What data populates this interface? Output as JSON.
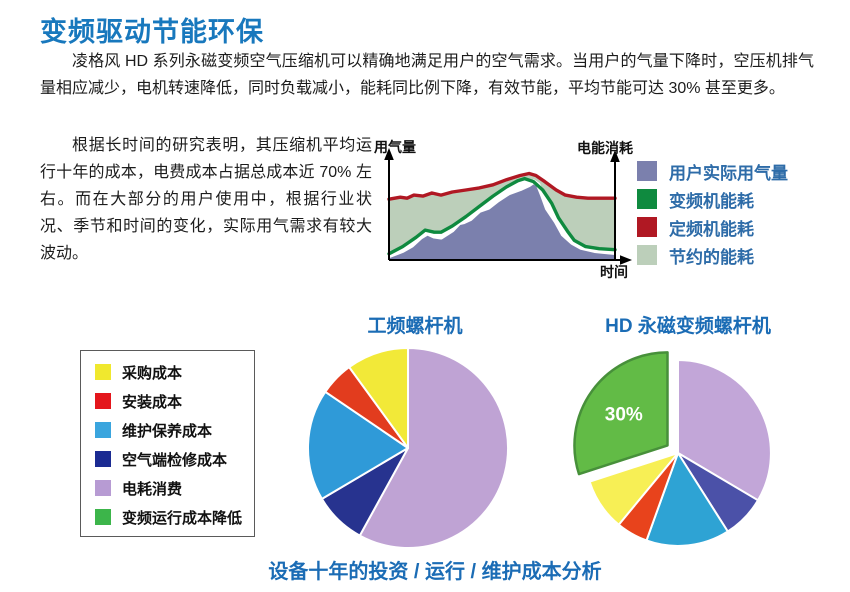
{
  "page": {
    "title": "变频驱动节能环保",
    "paragraph1": "凌格风 HD 系列永磁变频空气压缩机可以精确地满足用户的空气需求。当用户的气量下降时，空压机排气量相应减少，电机转速降低，同时负载减小，能耗同比例下降，有效节能，平均节能可达 30% 甚至更多。",
    "paragraph2": "根据长时间的研究表明，其压缩机平均运行十年的成本，电费成本占据总成本近 70% 左右。而在大部分的用户使用中，根据行业状况、季节和时间的变化，实际用气需求有较大波动。",
    "caption": "设备十年的投资 / 运行 / 维护成本分析"
  },
  "colors": {
    "heading_blue": "#1878bd",
    "chart_title_blue": "#1b6cb5",
    "legend_text_blue": "#2e6ca8",
    "body_text": "#1c1c1c"
  },
  "chart_data": [
    {
      "type": "area",
      "y_left_label": "用气量",
      "y_right_label": "电能消耗",
      "x_label": "时间",
      "x_range": [
        0,
        100
      ],
      "y_range": [
        0,
        100
      ],
      "grid": false,
      "legend_position": "right",
      "legend": [
        {
          "label": "用户实际用气量",
          "color": "#7b80ad"
        },
        {
          "label": "变频机能耗",
          "color": "#0f8a3f"
        },
        {
          "label": "定频机能耗",
          "color": "#b01823"
        },
        {
          "label": "节约的能耗",
          "color": "#bccfba"
        }
      ],
      "saved_band": {
        "label": "节约的能耗",
        "color": "#bccfba",
        "between": [
          "定频机能耗",
          "变频机能耗"
        ]
      },
      "series": [
        {
          "name": "定频机能耗",
          "kind": "line",
          "color": "#b01823",
          "points": [
            [
              0,
              59
            ],
            [
              5,
              61
            ],
            [
              8,
              60
            ],
            [
              11,
              63
            ],
            [
              15,
              62
            ],
            [
              19,
              65
            ],
            [
              23,
              63
            ],
            [
              28,
              66
            ],
            [
              34,
              68
            ],
            [
              40,
              70
            ],
            [
              46,
              73
            ],
            [
              52,
              78
            ],
            [
              58,
              82
            ],
            [
              62,
              84
            ],
            [
              65,
              82
            ],
            [
              69,
              76
            ],
            [
              74,
              68
            ],
            [
              78,
              63
            ],
            [
              83,
              61
            ],
            [
              88,
              60
            ],
            [
              94,
              60
            ],
            [
              100,
              60
            ]
          ]
        },
        {
          "name": "变频机能耗",
          "kind": "line",
          "color": "#0f8a3f",
          "points": [
            [
              0,
              6
            ],
            [
              6,
              13
            ],
            [
              12,
              22
            ],
            [
              16,
              29
            ],
            [
              20,
              27
            ],
            [
              23,
              27
            ],
            [
              28,
              33
            ],
            [
              34,
              42
            ],
            [
              40,
              52
            ],
            [
              46,
              62
            ],
            [
              52,
              71
            ],
            [
              57,
              77
            ],
            [
              60,
              79
            ],
            [
              64,
              76
            ],
            [
              68,
              68
            ],
            [
              72,
              55
            ],
            [
              75,
              41
            ],
            [
              79,
              28
            ],
            [
              82,
              19
            ],
            [
              87,
              13
            ],
            [
              93,
              11
            ],
            [
              100,
              10
            ]
          ]
        },
        {
          "name": "用户实际用气量",
          "kind": "area",
          "color": "#7b80ad",
          "points": [
            [
              0,
              4
            ],
            [
              6,
              9
            ],
            [
              10,
              14
            ],
            [
              14,
              22
            ],
            [
              17,
              26
            ],
            [
              20,
              23
            ],
            [
              23,
              22
            ],
            [
              28,
              29
            ],
            [
              31,
              36
            ],
            [
              33,
              37
            ],
            [
              36,
              40
            ],
            [
              40,
              48
            ],
            [
              44,
              51
            ],
            [
              48,
              58
            ],
            [
              53,
              65
            ],
            [
              58,
              69
            ],
            [
              62,
              73
            ],
            [
              64,
              76
            ],
            [
              66,
              73
            ],
            [
              68,
              62
            ],
            [
              70,
              50
            ],
            [
              74,
              37
            ],
            [
              77,
              25
            ],
            [
              81,
              17
            ],
            [
              85,
              12
            ],
            [
              91,
              9
            ],
            [
              100,
              7
            ]
          ]
        }
      ]
    },
    {
      "type": "pie",
      "title": "工频螺杆机",
      "start_angle_deg": 0,
      "slices": [
        {
          "label": "电耗消费",
          "percent": 58,
          "color": "#bfa3d4"
        },
        {
          "label": "空气端检修成本",
          "percent": 8.5,
          "color": "#27338f"
        },
        {
          "label": "维护保养成本",
          "percent": 18,
          "color": "#2f9ad8"
        },
        {
          "label": "安装成本",
          "percent": 5.5,
          "color": "#e23c1e"
        },
        {
          "label": "采购成本",
          "percent": 10,
          "color": "#f2e938"
        }
      ]
    },
    {
      "type": "pie",
      "title": "HD 永磁变频螺杆机",
      "start_angle_deg": 0,
      "slices": [
        {
          "label": "电耗消费",
          "percent": 33.5,
          "color": "#c2a6d8"
        },
        {
          "label": "空气端检修成本",
          "percent": 7.5,
          "color": "#4b51a8"
        },
        {
          "label": "维护保养成本",
          "percent": 14.5,
          "color": "#2ea3d4"
        },
        {
          "label": "安装成本",
          "percent": 5.5,
          "color": "#e8431c"
        },
        {
          "label": "采购成本",
          "percent": 9,
          "color": "#f7ef55"
        },
        {
          "label": "变频运行成本降低",
          "percent": 30,
          "color": "#62bb46",
          "exploded": true,
          "value_label": "30%",
          "outline": "#47903a"
        }
      ]
    }
  ],
  "pie_legend": {
    "items": [
      {
        "label": "采购成本",
        "color": "#f0e82e"
      },
      {
        "label": "安装成本",
        "color": "#e4161c"
      },
      {
        "label": "维护保养成本",
        "color": "#3aa5de"
      },
      {
        "label": "空气端检修成本",
        "color": "#1b2b92"
      },
      {
        "label": "电耗消费",
        "color": "#b79bd3"
      },
      {
        "label": "变频运行成本降低",
        "color": "#3cb54a"
      }
    ]
  }
}
